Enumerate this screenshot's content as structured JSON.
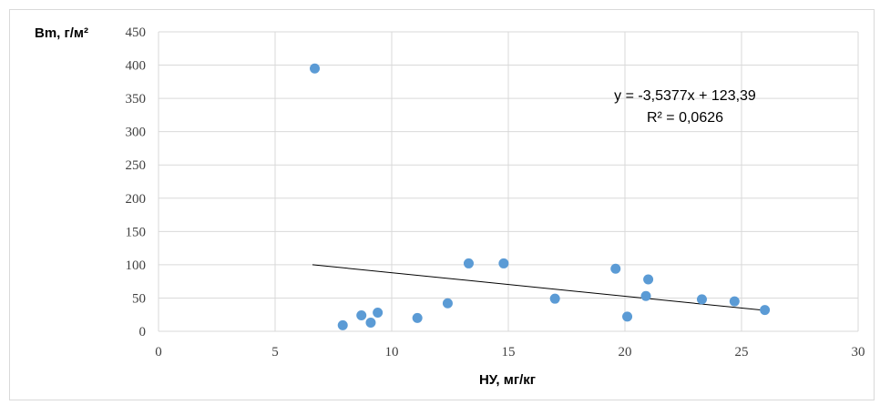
{
  "chart_data": {
    "type": "scatter",
    "xlabel": "НУ, мг/кг",
    "ylabel": "Bm, г/м²",
    "xlim": [
      0,
      30
    ],
    "ylim": [
      0,
      450
    ],
    "x_ticks": [
      "0",
      "5",
      "10",
      "15",
      "20",
      "25",
      "30"
    ],
    "y_ticks": [
      "0",
      "50",
      "100",
      "150",
      "200",
      "250",
      "300",
      "350",
      "400",
      "450"
    ],
    "grid": true,
    "point_color": "#5b9bd5",
    "trendline_color": "#000000",
    "series": [
      {
        "x": [
          6.7,
          7.9,
          8.7,
          9.1,
          9.4,
          11.1,
          12.4,
          13.3,
          14.8,
          17.0,
          19.6,
          20.1,
          20.9,
          21.0,
          23.3,
          24.7,
          26.0
        ],
        "y": [
          395,
          9,
          24,
          13,
          28,
          20,
          42,
          102,
          102,
          49,
          94,
          22,
          53,
          78,
          48,
          45,
          32
        ]
      }
    ],
    "trendline": {
      "slope": -3.5377,
      "intercept": 123.39,
      "x_range": [
        6.6,
        26.0
      ],
      "equation": "y = -3,5377x + 123,39",
      "r2": "R² = 0,0626"
    }
  }
}
